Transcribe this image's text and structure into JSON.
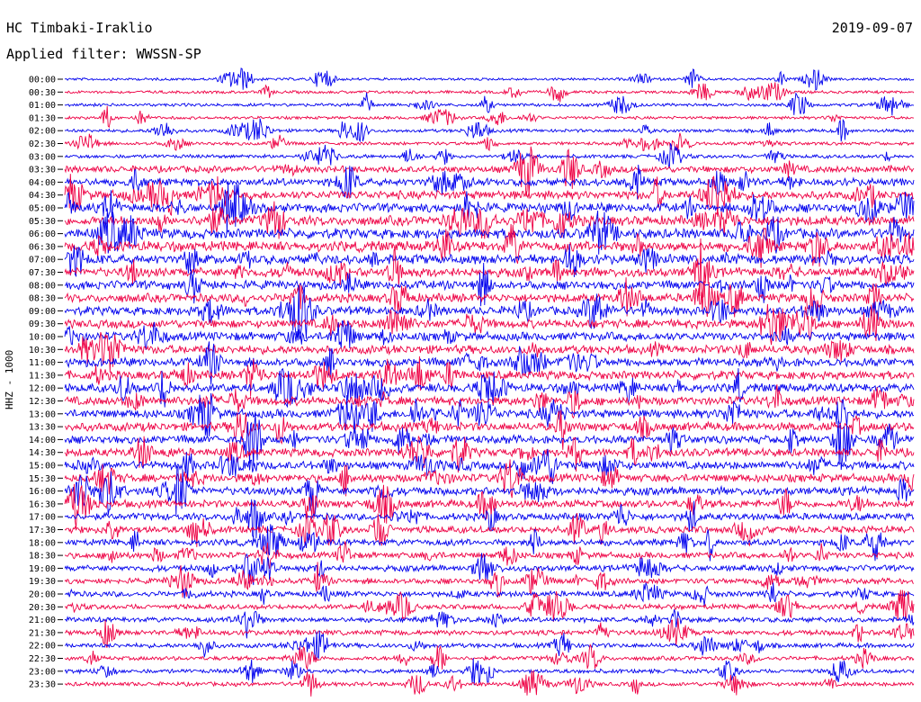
{
  "header": {
    "station": "HC Timbaki-Iraklio",
    "filter": "Applied filter: WWSSN-SP",
    "date": "2019-09-07"
  },
  "chart_data": {
    "type": "line",
    "title": "HC Timbaki-Iraklio",
    "subtitle": "Applied filter: WWSSN-SP",
    "date": "2019-09-07",
    "ylabel": "HHZ - 1000",
    "trace_labels": [
      "00:00",
      "00:30",
      "01:00",
      "01:30",
      "02:00",
      "02:30",
      "03:00",
      "03:30",
      "04:00",
      "04:30",
      "05:00",
      "05:30",
      "06:00",
      "06:30",
      "07:00",
      "07:30",
      "08:00",
      "08:30",
      "09:00",
      "09:30",
      "10:00",
      "10:30",
      "11:00",
      "11:30",
      "12:00",
      "12:30",
      "13:00",
      "13:30",
      "14:00",
      "14:30",
      "15:00",
      "15:30",
      "16:00",
      "16:30",
      "17:00",
      "17:30",
      "18:00",
      "18:30",
      "19:00",
      "19:30",
      "20:00",
      "20:30",
      "21:00",
      "21:30",
      "22:00",
      "22:30",
      "23:00",
      "23:30"
    ],
    "trace_activity": [
      0.15,
      0.18,
      0.2,
      0.18,
      0.22,
      0.22,
      0.25,
      0.55,
      0.65,
      0.75,
      0.8,
      0.85,
      0.9,
      0.9,
      0.85,
      0.8,
      0.75,
      0.75,
      0.75,
      0.75,
      0.75,
      0.75,
      0.75,
      0.75,
      0.75,
      0.75,
      0.75,
      0.75,
      0.7,
      0.7,
      0.7,
      0.7,
      0.7,
      0.65,
      0.6,
      0.6,
      0.55,
      0.5,
      0.5,
      0.45,
      0.45,
      0.4,
      0.4,
      0.4,
      0.35,
      0.3,
      0.3,
      0.3
    ],
    "colors": [
      "#0000ee",
      "#ee0044"
    ],
    "grid": false
  }
}
